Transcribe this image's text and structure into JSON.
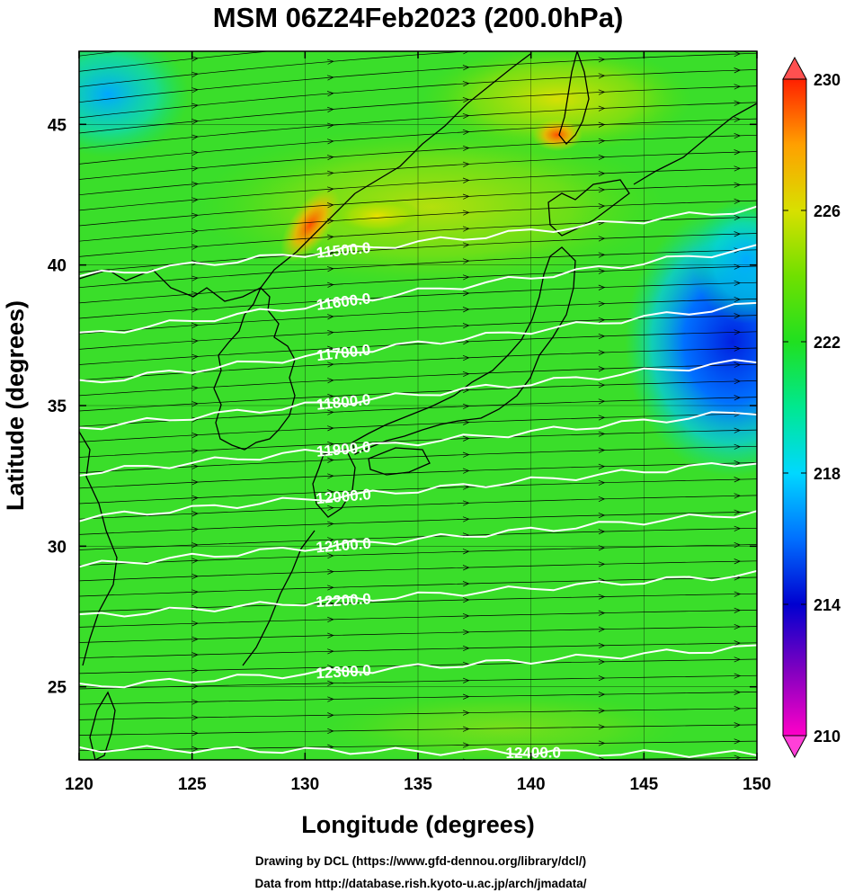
{
  "chart_data": {
    "type": "contour",
    "title": "MSM 06Z24Feb2023 (200.0hPa)",
    "xlabel": "Longitude (degrees)",
    "ylabel": "Latitude  (degrees)",
    "xlim": [
      120,
      150
    ],
    "ylim": [
      22.4,
      47.6
    ],
    "x_ticks": [
      120,
      125,
      130,
      135,
      140,
      145,
      150
    ],
    "y_ticks": [
      25,
      30,
      35,
      40,
      45
    ],
    "colorbar": {
      "ticks": [
        210,
        214,
        218,
        222,
        226,
        230
      ],
      "range": [
        210,
        230
      ],
      "colors": [
        "#ff00c8",
        "#8000c0",
        "#0000d0",
        "#0070ff",
        "#00d8ff",
        "#00e890",
        "#20e020",
        "#70e000",
        "#d8e000",
        "#ffa000",
        "#ff2000"
      ]
    },
    "contours": [
      {
        "label": "11500.0",
        "value": 11500,
        "lat_west": 39.6,
        "lat_east": 42.0
      },
      {
        "label": "11600.0",
        "value": 11600,
        "lat_west": 37.5,
        "lat_east": 40.6
      },
      {
        "label": "11700.0",
        "value": 11700,
        "lat_west": 35.8,
        "lat_east": 38.6
      },
      {
        "label": "11800.0",
        "value": 11800,
        "lat_west": 34.2,
        "lat_east": 36.6
      },
      {
        "label": "11900.0",
        "value": 11900,
        "lat_west": 32.6,
        "lat_east": 34.8
      },
      {
        "label": "12000.0",
        "value": 12000,
        "lat_west": 31.0,
        "lat_east": 33.0
      },
      {
        "label": "12100.0",
        "value": 12100,
        "lat_west": 29.3,
        "lat_east": 31.2
      },
      {
        "label": "12200.0",
        "value": 12200,
        "lat_west": 27.5,
        "lat_east": 29.0
      },
      {
        "label": "12300.0",
        "value": 12300,
        "lat_west": 25.0,
        "lat_east": 26.4
      },
      {
        "label": "12400.0",
        "value": 12400,
        "lat_west": 22.8,
        "lat_east": 22.6
      }
    ]
  },
  "credits": {
    "line1": "Drawing by DCL (https://www.gfd-dennou.org/library/dcl/)",
    "line2": "Data from http://database.rish.kyoto-u.ac.jp/arch/jmadata/"
  }
}
